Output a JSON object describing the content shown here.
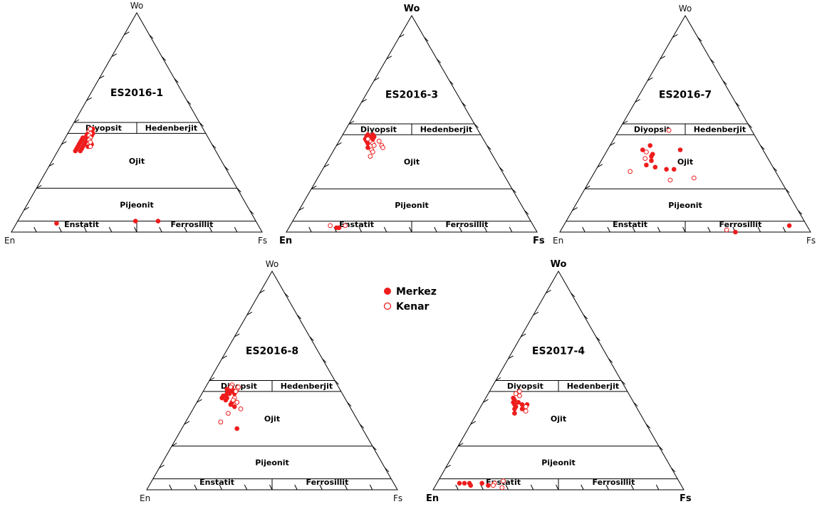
{
  "legend": {
    "items": [
      {
        "label": "Merkez",
        "filled": true,
        "color": "#ee1c1c"
      },
      {
        "label": "Kenar",
        "filled": false,
        "color": "#ee1c1c"
      }
    ]
  },
  "field_labels": {
    "diopside": "Diyopsit",
    "hedenbergite": "Hedenberjit",
    "augite": "Ojit",
    "pigeonite": "Pijeonit",
    "enstatite": "Enstatit",
    "ferrosilite": "Ferrosillit"
  },
  "chart_data": [
    {
      "type": "scatter",
      "diagram": "ternary",
      "title": "ES2016-1",
      "vertices": {
        "top": "Wo",
        "left": "En",
        "right": "Fs"
      },
      "series": [
        {
          "name": "Merkez",
          "points": [
            [
              43,
              48,
              9
            ],
            [
              43,
              50,
              7
            ],
            [
              42,
              49,
              9
            ],
            [
              42,
              51,
              7
            ],
            [
              41,
              50,
              9
            ],
            [
              41,
              52,
              7
            ],
            [
              40,
              51,
              9
            ],
            [
              40,
              53,
              7
            ],
            [
              39,
              52,
              9
            ],
            [
              39,
              54,
              7
            ],
            [
              38,
              53,
              9
            ],
            [
              38,
              55,
              7
            ],
            [
              37,
              54,
              9
            ],
            [
              37,
              56,
              7
            ],
            [
              46,
              45,
              9
            ],
            [
              45,
              47,
              8
            ],
            [
              44,
              48,
              8
            ],
            [
              47,
              44,
              9
            ],
            [
              45,
              45,
              10
            ],
            [
              44,
              46,
              10
            ],
            [
              40,
              48,
              12
            ],
            [
              39,
              50,
              11
            ],
            [
              4,
              80,
              16
            ],
            [
              5,
              48,
              47
            ],
            [
              5,
              39,
              56
            ]
          ]
        },
        {
          "name": "Kenar",
          "points": [
            [
              46,
              46,
              8
            ],
            [
              45,
              46,
              9
            ],
            [
              44,
              47,
              9
            ],
            [
              43,
              47,
              10
            ],
            [
              42,
              48,
              10
            ],
            [
              41,
              48,
              11
            ],
            [
              39,
              49,
              12
            ],
            [
              47,
              45,
              8
            ]
          ]
        }
      ]
    },
    {
      "type": "scatter",
      "diagram": "ternary",
      "title": "ES2016-3",
      "vertices": {
        "top": "Wo",
        "left": "En",
        "right": "Fs"
      },
      "series": [
        {
          "name": "Merkez",
          "points": [
            [
              45,
              45,
              10
            ],
            [
              44,
              46,
              10
            ],
            [
              43,
              47,
              10
            ],
            [
              44,
              44,
              12
            ],
            [
              42,
              47,
              11
            ],
            [
              41,
              47,
              12
            ],
            [
              39,
              48,
              13
            ],
            [
              45,
              43,
              12
            ],
            [
              44,
              43,
              13
            ],
            [
              43,
              44,
              13
            ],
            [
              2,
              79,
              19
            ],
            [
              2,
              78,
              20
            ]
          ]
        },
        {
          "name": "Kenar",
          "points": [
            [
              41,
              45,
              14
            ],
            [
              40,
              45,
              15
            ],
            [
              38,
              47,
              15
            ],
            [
              37,
              47,
              16
            ],
            [
              35,
              49,
              16
            ],
            [
              40,
              42,
              18
            ],
            [
              39,
              42,
              19
            ],
            [
              42,
              42,
              16
            ],
            [
              43,
              46,
              11
            ],
            [
              3,
              81,
              16
            ],
            [
              3,
              75,
              22
            ]
          ]
        }
      ]
    },
    {
      "type": "scatter",
      "diagram": "ternary",
      "title": "ES2016-7",
      "vertices": {
        "top": "Wo",
        "left": "En",
        "right": "Fs"
      },
      "series": [
        {
          "name": "Merkez",
          "points": [
            [
              40,
              44,
              16
            ],
            [
              38,
              48,
              14
            ],
            [
              36,
              45,
              19
            ],
            [
              35,
              46,
              19
            ],
            [
              33,
              47,
              20
            ],
            [
              31,
              50,
              19
            ],
            [
              30,
              47,
              23
            ],
            [
              29,
              43,
              28
            ],
            [
              29,
              40,
              31
            ],
            [
              38,
              33,
              29
            ],
            [
              0,
              30,
              70
            ],
            [
              3,
              7,
              90
            ]
          ]
        },
        {
          "name": "Kenar",
          "points": [
            [
              47,
              33,
              20
            ],
            [
              37,
              47,
              16
            ],
            [
              34,
              49,
              17
            ],
            [
              28,
              58,
              14
            ],
            [
              24,
              44,
              32
            ],
            [
              25,
              34,
              41
            ],
            [
              1,
              33,
              66
            ]
          ]
        }
      ]
    },
    {
      "type": "scatter",
      "diagram": "ternary",
      "title": "ES2016-8",
      "vertices": {
        "top": "Wo",
        "left": "En",
        "right": "Fs"
      },
      "series": [
        {
          "name": "Merkez",
          "points": [
            [
              45,
              45,
              10
            ],
            [
              44,
              46,
              10
            ],
            [
              43,
              47,
              10
            ],
            [
              45,
              44,
              11
            ],
            [
              44,
              45,
              11
            ],
            [
              46,
              45,
              9
            ],
            [
              43,
              48,
              9
            ],
            [
              42,
              49,
              9
            ],
            [
              42,
              47,
              11
            ],
            [
              41,
              48,
              11
            ],
            [
              46,
              43,
              11
            ],
            [
              44,
              43,
              13
            ],
            [
              40,
              46,
              14
            ],
            [
              39,
              47,
              14
            ],
            [
              38,
              46,
              16
            ],
            [
              28,
              50,
              22
            ]
          ]
        },
        {
          "name": "Kenar",
          "points": [
            [
              48,
              42,
              10
            ],
            [
              47,
              43,
              10
            ],
            [
              46,
              41,
              13
            ],
            [
              45,
              42,
              13
            ],
            [
              42,
              44,
              14
            ],
            [
              40,
              44,
              16
            ],
            [
              37,
              44,
              19
            ],
            [
              35,
              50,
              15
            ],
            [
              31,
              55,
              14
            ],
            [
              47,
              40,
              13
            ],
            [
              41,
              45,
              14
            ]
          ]
        }
      ]
    },
    {
      "type": "scatter",
      "diagram": "ternary",
      "title": "ES2017-4",
      "vertices": {
        "top": "Wo",
        "left": "En",
        "right": "Fs"
      },
      "series": [
        {
          "name": "Merkez",
          "points": [
            [
              42,
              47,
              11
            ],
            [
              41,
              47,
              12
            ],
            [
              40,
              48,
              12
            ],
            [
              39,
              48,
              13
            ],
            [
              40,
              46,
              14
            ],
            [
              38,
              48,
              14
            ],
            [
              37,
              49,
              14
            ],
            [
              39,
              45,
              16
            ],
            [
              37,
              46,
              17
            ],
            [
              39,
              43,
              18
            ],
            [
              35,
              50,
              15
            ],
            [
              3,
              88,
              9
            ],
            [
              3,
              86,
              11
            ],
            [
              3,
              84,
              13
            ],
            [
              2,
              84,
              14
            ],
            [
              3,
              79,
              18
            ],
            [
              2,
              77,
              21
            ]
          ]
        },
        {
          "name": "Kenar",
          "points": [
            [
              45,
              43,
              12
            ],
            [
              44,
              45,
              11
            ],
            [
              43,
              44,
              13
            ],
            [
              38,
              44,
              18
            ],
            [
              36,
              45,
              19
            ],
            [
              3,
              74,
              23
            ],
            [
              2,
              75,
              23
            ],
            [
              1,
              72,
              27
            ],
            [
              4,
              70,
              26
            ]
          ]
        }
      ]
    }
  ]
}
